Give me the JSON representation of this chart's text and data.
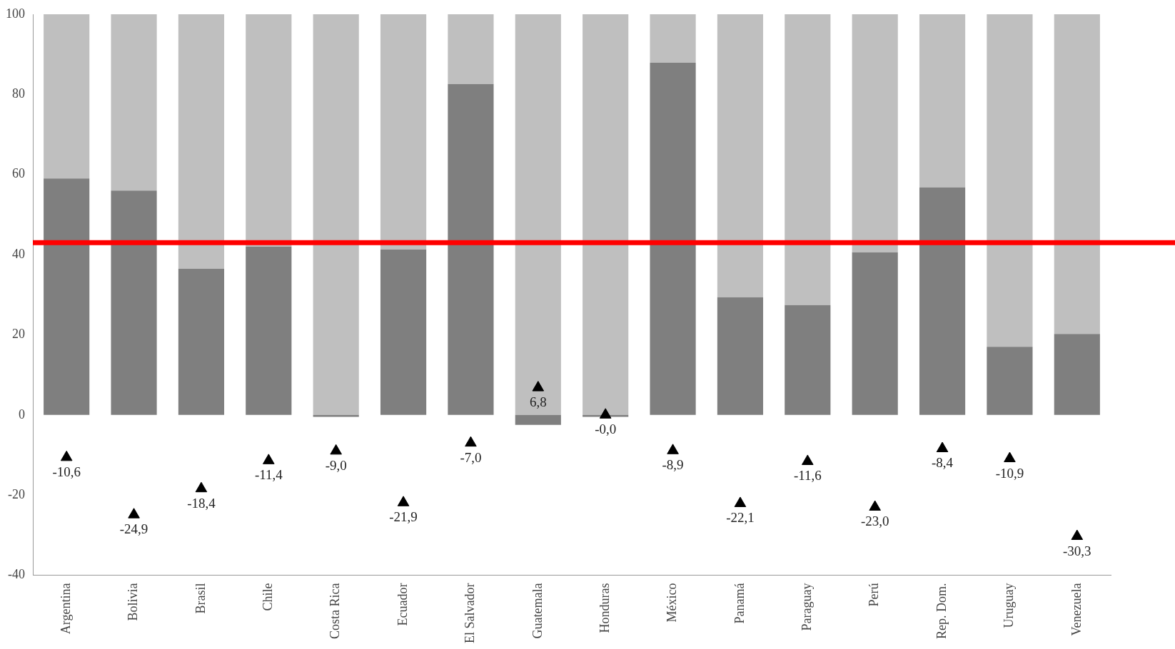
{
  "chart_data": {
    "type": "bar",
    "stacked": true,
    "categories": [
      "Argentina",
      "Bolivia",
      "Brasil",
      "Chile",
      "Costa Rica",
      "Ecuador",
      "El Salvador",
      "Guatemala",
      "Honduras",
      "México",
      "Panamá",
      "Paraguay",
      "Perú",
      "Rep. Dom.",
      "Uruguay",
      "Venezuela"
    ],
    "series": [
      {
        "color": "#7f7f7f",
        "values": [
          59,
          56,
          36.5,
          42,
          -0.5,
          41.3,
          82.6,
          -2.5,
          -0.5,
          87.9,
          29.4,
          27.4,
          40.6,
          56.8,
          17,
          20.2
        ]
      },
      {
        "color": "#bfbfbf",
        "values": [
          41,
          44,
          63.5,
          58,
          100,
          58.7,
          17.4,
          100,
          100,
          12.1,
          70.6,
          72.6,
          59.4,
          43.2,
          83,
          79.8
        ]
      },
      {
        "type": "scatter",
        "color": "#000000",
        "marker": "triangle",
        "x": [
          "Argentina",
          "Bolivia",
          "Brasil",
          "Chile",
          "Costa Rica",
          "Ecuador",
          "El Salvador",
          "Guatemala",
          "Honduras",
          "México",
          "Panamá",
          "Paraguay",
          "Perú",
          "Rep. Dom.",
          "Uruguay",
          "Venezuela"
        ],
        "values": [
          -10.6,
          -24.9,
          -18.4,
          -11.4,
          -9.0,
          -21.9,
          -7.0,
          6.8,
          0,
          -8.9,
          -22.1,
          -11.6,
          -23.0,
          -8.4,
          -10.9,
          -30.3
        ],
        "value_labels": [
          "-10,6",
          "-24,9",
          "-18,4",
          "-11,4",
          "-9,0",
          "-21,9",
          "-7,0",
          "6,8",
          "-0,0",
          "-8,9",
          "-22,1",
          "-11,6",
          "-23,0",
          "-8,4",
          "-10,9",
          "-30,3"
        ]
      }
    ],
    "ylim": [
      -40,
      100
    ],
    "yticks": [
      -40,
      -20,
      0,
      20,
      40,
      60,
      80,
      100
    ],
    "grid": false,
    "legend": false,
    "ref_lines": [
      {
        "axis": "y",
        "value": 43,
        "color": "#ff0000"
      }
    ]
  }
}
